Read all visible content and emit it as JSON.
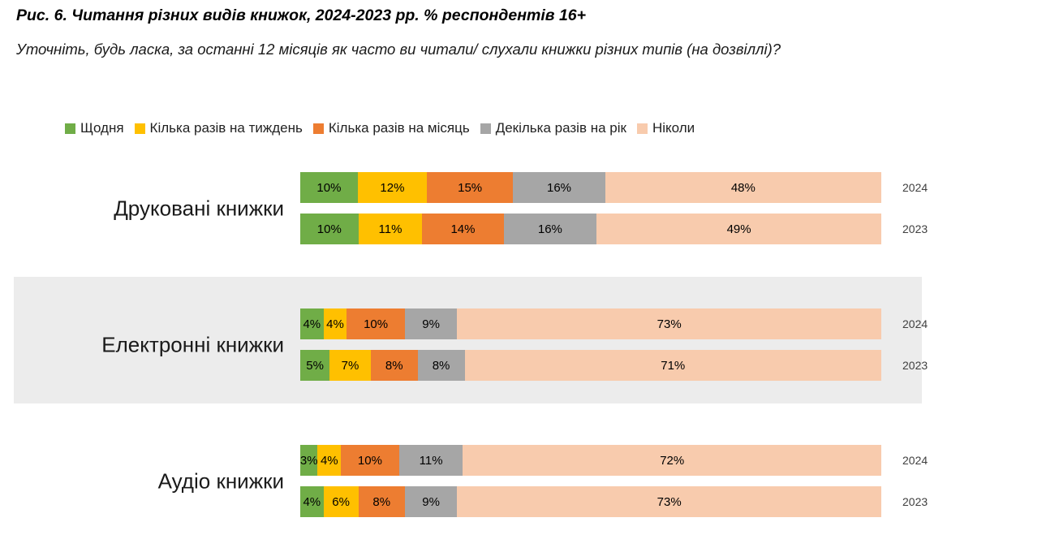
{
  "title": "Рис. 6. Читання різних видів книжок, 2024-2023 рр. % респондентів 16+",
  "subtitle": "Уточніть, будь ласка, за останні 12 місяців як часто ви читали/ слухали книжки різних типів (на дозвіллі)?",
  "colors": {
    "daily": "#70ad47",
    "weekly": "#ffc000",
    "monthly": "#ed7d31",
    "yearly": "#a6a6a6",
    "never": "#f8cbad",
    "highlight_band": "#ececec"
  },
  "chart_data": {
    "type": "bar",
    "orientation": "horizontal",
    "stacked": true,
    "unit": "%",
    "legend": [
      "Щодня",
      "Кілька разів на тиждень",
      "Кілька разів на місяць",
      "Декілька разів на рік",
      "Ніколи"
    ],
    "series_colors": [
      "#70ad47",
      "#ffc000",
      "#ed7d31",
      "#a6a6a6",
      "#f8cbad"
    ],
    "xlim": [
      0,
      100
    ],
    "legend_position": "top",
    "grid": false,
    "groups": [
      {
        "category": "Друковані книжки",
        "highlighted": false,
        "rows": [
          {
            "year": "2024",
            "values": [
              10,
              12,
              15,
              16,
              48
            ]
          },
          {
            "year": "2023",
            "values": [
              10,
              11,
              14,
              16,
              49
            ]
          }
        ]
      },
      {
        "category": "Електронні книжки",
        "highlighted": true,
        "rows": [
          {
            "year": "2024",
            "values": [
              4,
              4,
              10,
              9,
              73
            ]
          },
          {
            "year": "2023",
            "values": [
              5,
              7,
              8,
              8,
              71
            ]
          }
        ]
      },
      {
        "category": "Аудіо книжки",
        "highlighted": false,
        "rows": [
          {
            "year": "2024",
            "values": [
              3,
              4,
              10,
              11,
              72
            ]
          },
          {
            "year": "2023",
            "values": [
              4,
              6,
              8,
              9,
              73
            ]
          }
        ]
      }
    ]
  }
}
